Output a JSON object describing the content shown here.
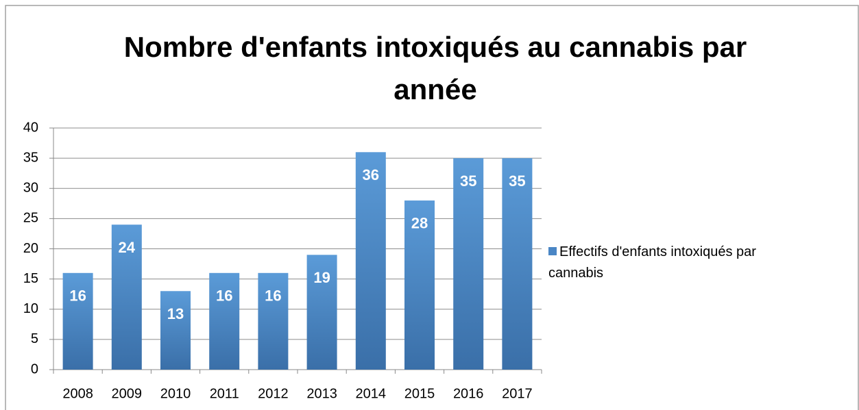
{
  "chart_data": {
    "type": "bar",
    "title": "Nombre d'enfants intoxiqués au cannabis par année",
    "categories": [
      "2008",
      "2009",
      "2010",
      "2011",
      "2012",
      "2013",
      "2014",
      "2015",
      "2016",
      "2017"
    ],
    "series": [
      {
        "name": "Effectifs d'enfants intoxiqués par cannabis",
        "color": "#4a86c5",
        "values": [
          16,
          24,
          13,
          16,
          16,
          19,
          36,
          28,
          35,
          35
        ]
      }
    ],
    "ylim": [
      0,
      40
    ],
    "yticks": [
      0,
      5,
      10,
      15,
      20,
      25,
      30,
      35,
      40
    ],
    "grid": true,
    "legend": "right"
  }
}
